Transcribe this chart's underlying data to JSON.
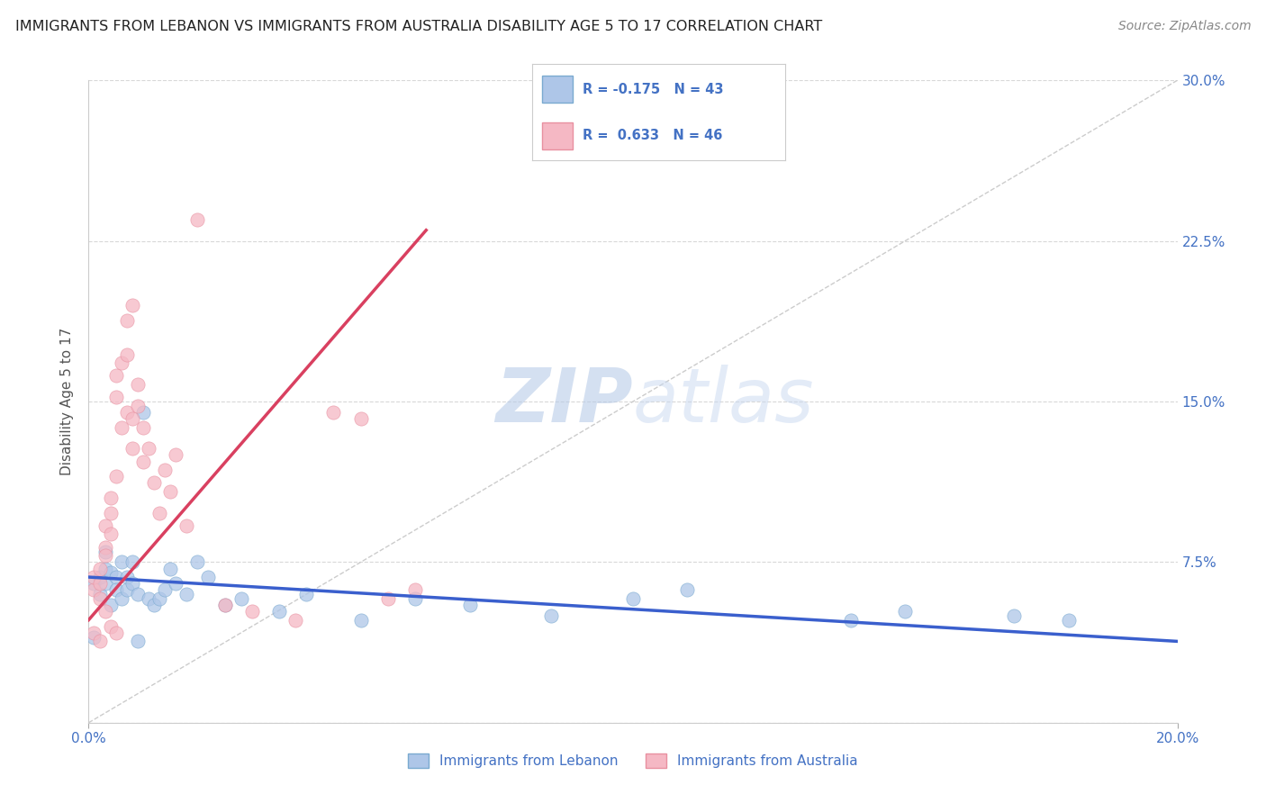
{
  "title": "IMMIGRANTS FROM LEBANON VS IMMIGRANTS FROM AUSTRALIA DISABILITY AGE 5 TO 17 CORRELATION CHART",
  "source": "Source: ZipAtlas.com",
  "ylabel": "Disability Age 5 to 17",
  "xlim": [
    0.0,
    0.2
  ],
  "ylim": [
    0.0,
    0.3
  ],
  "xticks": [
    0.0,
    0.2
  ],
  "xtick_labels": [
    "0.0%",
    "20.0%"
  ],
  "yticks": [
    0.0,
    0.075,
    0.15,
    0.225,
    0.3
  ],
  "ytick_labels": [
    "",
    "7.5%",
    "15.0%",
    "22.5%",
    "30.0%"
  ],
  "legend_R1": "-0.175",
  "legend_N1": "43",
  "legend_R2": "0.633",
  "legend_N2": "46",
  "blue_color": "#aec6e8",
  "pink_color": "#f5b8c4",
  "blue_edge_color": "#7aaad0",
  "pink_edge_color": "#e890a0",
  "blue_line_color": "#3a5fcd",
  "pink_line_color": "#d94060",
  "watermark_zip": "ZIP",
  "watermark_atlas": "atlas",
  "watermark_color": "#d0dff5",
  "title_color": "#222222",
  "axis_color": "#4472c4",
  "grid_color": "#d8d8d8",
  "diag_color": "#cccccc",
  "blue_points_x": [
    0.001,
    0.001,
    0.002,
    0.002,
    0.003,
    0.003,
    0.003,
    0.004,
    0.004,
    0.005,
    0.005,
    0.006,
    0.006,
    0.007,
    0.007,
    0.008,
    0.008,
    0.009,
    0.01,
    0.011,
    0.012,
    0.013,
    0.014,
    0.015,
    0.016,
    0.018,
    0.02,
    0.022,
    0.025,
    0.028,
    0.035,
    0.04,
    0.05,
    0.06,
    0.07,
    0.085,
    0.1,
    0.11,
    0.14,
    0.15,
    0.17,
    0.18,
    0.009
  ],
  "blue_points_y": [
    0.065,
    0.04,
    0.06,
    0.068,
    0.072,
    0.065,
    0.08,
    0.07,
    0.055,
    0.068,
    0.062,
    0.075,
    0.058,
    0.068,
    0.062,
    0.075,
    0.065,
    0.06,
    0.145,
    0.058,
    0.055,
    0.058,
    0.062,
    0.072,
    0.065,
    0.06,
    0.075,
    0.068,
    0.055,
    0.058,
    0.052,
    0.06,
    0.048,
    0.058,
    0.055,
    0.05,
    0.058,
    0.062,
    0.048,
    0.052,
    0.05,
    0.048,
    0.038
  ],
  "pink_points_x": [
    0.001,
    0.001,
    0.002,
    0.002,
    0.002,
    0.003,
    0.003,
    0.003,
    0.004,
    0.004,
    0.004,
    0.005,
    0.005,
    0.005,
    0.006,
    0.006,
    0.007,
    0.007,
    0.007,
    0.008,
    0.008,
    0.008,
    0.009,
    0.009,
    0.01,
    0.01,
    0.011,
    0.012,
    0.013,
    0.014,
    0.015,
    0.016,
    0.018,
    0.02,
    0.025,
    0.03,
    0.038,
    0.045,
    0.05,
    0.055,
    0.06,
    0.001,
    0.002,
    0.003,
    0.004,
    0.005
  ],
  "pink_points_y": [
    0.062,
    0.068,
    0.058,
    0.072,
    0.065,
    0.082,
    0.092,
    0.078,
    0.088,
    0.098,
    0.105,
    0.115,
    0.162,
    0.152,
    0.168,
    0.138,
    0.188,
    0.172,
    0.145,
    0.195,
    0.142,
    0.128,
    0.158,
    0.148,
    0.138,
    0.122,
    0.128,
    0.112,
    0.098,
    0.118,
    0.108,
    0.125,
    0.092,
    0.235,
    0.055,
    0.052,
    0.048,
    0.145,
    0.142,
    0.058,
    0.062,
    0.042,
    0.038,
    0.052,
    0.045,
    0.042
  ],
  "blue_trend_x": [
    0.0,
    0.2
  ],
  "blue_trend_y": [
    0.068,
    0.038
  ],
  "pink_trend_x": [
    0.0,
    0.062
  ],
  "pink_trend_y": [
    0.048,
    0.23
  ],
  "diag_line_x": [
    0.0,
    0.2
  ],
  "diag_line_y": [
    0.0,
    0.3
  ]
}
